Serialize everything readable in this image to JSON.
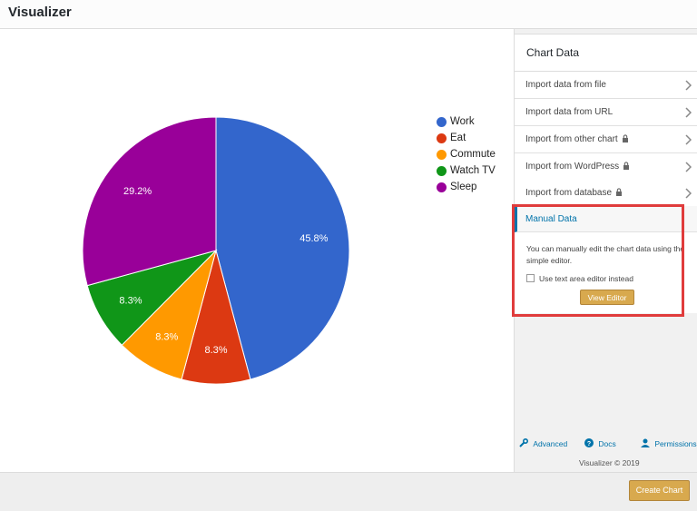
{
  "app": {
    "title": "Visualizer"
  },
  "chart_data": {
    "type": "pie",
    "categories": [
      "Work",
      "Eat",
      "Commute",
      "Watch TV",
      "Sleep"
    ],
    "values": [
      45.8,
      8.3,
      8.3,
      8.3,
      29.2
    ],
    "labels": [
      "45.8%",
      "8.3%",
      "8.3%",
      "8.3%",
      "29.2%"
    ],
    "colors": [
      "#3366cc",
      "#dc3912",
      "#ff9900",
      "#109618",
      "#990099"
    ],
    "legend_position": "right"
  },
  "sidebar": {
    "panel_title": "Chart Data",
    "items": [
      {
        "label": "Import data from file",
        "locked": false
      },
      {
        "label": "Import data from URL",
        "locked": false
      },
      {
        "label": "Import from other chart",
        "locked": true
      },
      {
        "label": "Import from WordPress",
        "locked": true
      },
      {
        "label": "Import from database",
        "locked": true
      }
    ],
    "manual": {
      "title": "Manual Data",
      "description": "You can manually edit the chart data using the simple editor.",
      "checkbox_label": "Use text area editor instead",
      "button_label": "View Editor"
    },
    "footer": {
      "advanced": "Advanced",
      "docs": "Docs",
      "permissions": "Permissions",
      "copyright": "Visualizer © 2019"
    }
  },
  "bottom": {
    "create_label": "Create Chart"
  },
  "icons": {
    "lock": "lock-icon",
    "chevron": "chevron-right-icon",
    "wrench": "wrench-icon",
    "help": "help-icon",
    "user": "user-icon"
  }
}
